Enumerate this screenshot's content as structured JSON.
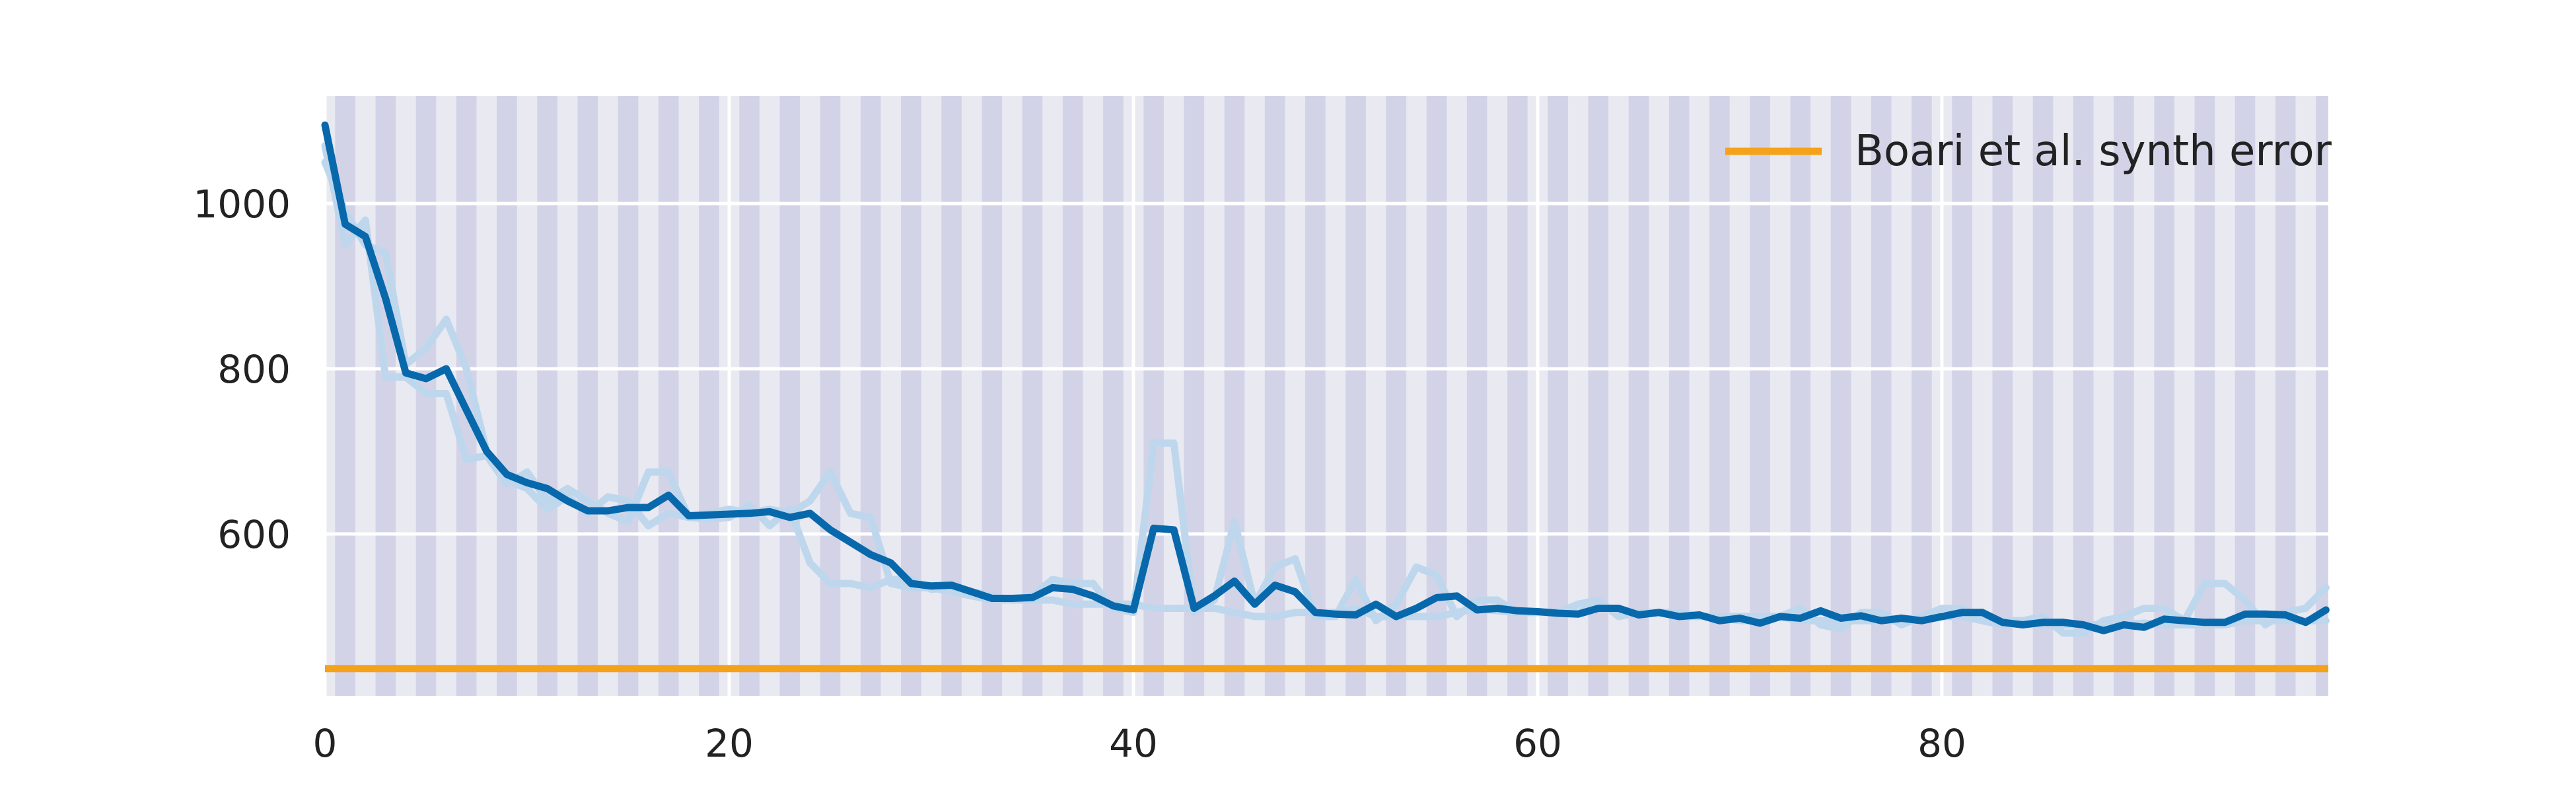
{
  "chart_data": {
    "type": "line",
    "title": "",
    "xlabel": "",
    "ylabel": "",
    "xlim": [
      0,
      99
    ],
    "ylim": [
      435,
      1115
    ],
    "x_ticks": [
      0,
      20,
      40,
      60,
      80
    ],
    "y_ticks": [
      600,
      800,
      1000
    ],
    "grid": true,
    "legend_position": "top-right",
    "legend": [
      {
        "label": "Boari et al. synth error",
        "color": "#f5a21b"
      }
    ],
    "reference_line": {
      "name": "Boari et al. synth error",
      "y": 437,
      "color": "#f5a21b"
    },
    "x": [
      0,
      1,
      2,
      3,
      4,
      5,
      6,
      7,
      8,
      9,
      10,
      11,
      12,
      13,
      14,
      15,
      16,
      17,
      18,
      19,
      20,
      21,
      22,
      23,
      24,
      25,
      26,
      27,
      28,
      29,
      30,
      31,
      32,
      33,
      34,
      35,
      36,
      37,
      38,
      39,
      40,
      41,
      42,
      43,
      44,
      45,
      46,
      47,
      48,
      49,
      50,
      51,
      52,
      53,
      54,
      55,
      56,
      57,
      58,
      59,
      60,
      61,
      62,
      63,
      64,
      65,
      66,
      67,
      68,
      69,
      70,
      71,
      72,
      73,
      74,
      75,
      76,
      77,
      78,
      79,
      80,
      81,
      82,
      83,
      84,
      85,
      86,
      87,
      88,
      89,
      90,
      91,
      92,
      93,
      94,
      95,
      96,
      97,
      98,
      99
    ],
    "series": [
      {
        "role": "mean",
        "color": "#0868ac",
        "values": [
          1095,
          975,
          960,
          885,
          795,
          788,
          800,
          750,
          700,
          672,
          662,
          655,
          640,
          628,
          628,
          632,
          632,
          647,
          622,
          623,
          624,
          625,
          627,
          620,
          625,
          605,
          590,
          575,
          565,
          540,
          537,
          538,
          530,
          522,
          522,
          523,
          535,
          533,
          525,
          513,
          508,
          607,
          605,
          510,
          525,
          543,
          515,
          538,
          530,
          505,
          503,
          502,
          515,
          500,
          510,
          523,
          525,
          508,
          510,
          507,
          506,
          504,
          503,
          510,
          510,
          502,
          505,
          500,
          502,
          495,
          498,
          492,
          500,
          498,
          507,
          498,
          501,
          495,
          498,
          495,
          500,
          505,
          505,
          493,
          490,
          493,
          493,
          490,
          483,
          490,
          487,
          497,
          495,
          493,
          493,
          503,
          503,
          502,
          493,
          508
        ]
      },
      {
        "role": "run",
        "color": "#bed7ec",
        "values": [
          1070,
          950,
          980,
          790,
          790,
          770,
          770,
          690,
          695,
          660,
          675,
          640,
          655,
          640,
          625,
          615,
          675,
          675,
          620,
          618,
          620,
          635,
          610,
          630,
          565,
          540,
          540,
          535,
          545,
          545,
          533,
          535,
          530,
          525,
          520,
          520,
          520,
          515,
          515,
          515,
          515,
          510,
          510,
          510,
          510,
          505,
          500,
          500,
          505,
          505,
          505,
          510,
          500,
          500,
          500,
          500,
          505,
          510,
          507,
          505,
          505,
          506,
          505,
          515,
          505,
          505,
          505,
          500,
          500,
          500,
          495,
          495,
          500,
          495,
          495,
          495,
          495,
          495,
          495,
          500,
          500,
          500,
          495,
          495,
          495,
          490,
          490,
          490,
          490,
          490,
          492,
          490,
          490,
          490,
          490,
          495,
          495,
          495,
          495,
          495
        ]
      },
      {
        "role": "run",
        "color": "#bed7ec",
        "values": [
          1050,
          990,
          950,
          940,
          805,
          825,
          860,
          800,
          700,
          665,
          655,
          630,
          645,
          625,
          645,
          640,
          610,
          625,
          620,
          625,
          630,
          625,
          630,
          625,
          640,
          675,
          625,
          620,
          540,
          535,
          535,
          530,
          525,
          520,
          520,
          525,
          545,
          540,
          540,
          510,
          505,
          710,
          710,
          505,
          520,
          615,
          515,
          560,
          570,
          500,
          500,
          545,
          495,
          515,
          560,
          550,
          500,
          520,
          520,
          505,
          505,
          505,
          515,
          520,
          500,
          505,
          505,
          505,
          500,
          500,
          500,
          500,
          500,
          510,
          490,
          485,
          505,
          505,
          490,
          500,
          510,
          510,
          495,
          490,
          495,
          500,
          480,
          480,
          495,
          500,
          510,
          510,
          495,
          540,
          540,
          520,
          490,
          505,
          510,
          535
        ]
      }
    ]
  }
}
